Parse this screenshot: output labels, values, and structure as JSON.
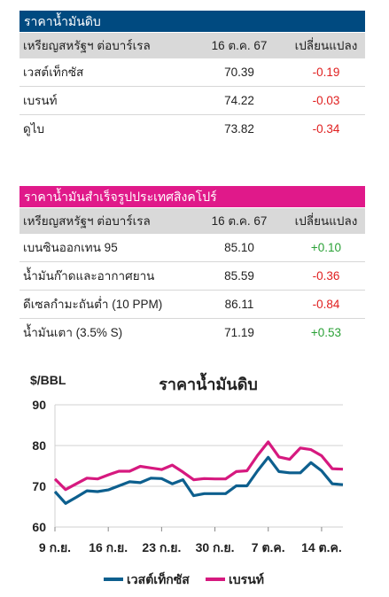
{
  "crude": {
    "header": "ราคาน้ำมันดิบ",
    "header_color": "#004a80",
    "col_unit": "เหรียญสหรัฐฯ ต่อบาร์เรล",
    "col_date": "16 ต.ค. 67",
    "col_change": "เปลี่ยนแปลง",
    "rows": [
      {
        "name": "เวสต์เท็กซัส",
        "price": "70.39",
        "change": "-0.19"
      },
      {
        "name": "เบรนท์",
        "price": "74.22",
        "change": "-0.03"
      },
      {
        "name": "ดูไบ",
        "price": "73.82",
        "change": "-0.34"
      }
    ]
  },
  "refined": {
    "header": "ราคาน้ำมันสำเร็จรูปประเทศสิงคโปร์",
    "header_color": "#e0198a",
    "col_unit": "เหรียญสหรัฐฯ ต่อบาร์เรล",
    "col_date": "16 ต.ค. 67",
    "col_change": "เปลี่ยนแปลง",
    "rows": [
      {
        "name": "เบนซินออกเทน 95",
        "price": "85.10",
        "change": "+0.10"
      },
      {
        "name": "น้ำมันก๊าดและอากาศยาน",
        "price": "85.59",
        "change": "-0.36"
      },
      {
        "name": "ดีเซลกำมะถันต่ำ (10 PPM)",
        "price": "86.11",
        "change": "-0.84"
      },
      {
        "name": "น้ำมันเตา (3.5% S)",
        "price": "71.19",
        "change": "+0.53"
      }
    ]
  },
  "chart_data": {
    "type": "line",
    "title": "ราคาน้ำมันดิบ",
    "ylabel": "$/BBL",
    "ylim": [
      60,
      90
    ],
    "yticks": [
      60,
      70,
      80,
      90
    ],
    "xticks": [
      "9 ก.ย.",
      "16 ก.ย.",
      "23 ก.ย.",
      "30 ก.ย.",
      "7 ต.ค.",
      "14 ต.ค."
    ],
    "x": [
      "9 ก.ย.",
      "10 ก.ย.",
      "11 ก.ย.",
      "12 ก.ย.",
      "13 ก.ย.",
      "16 ก.ย.",
      "17 ก.ย.",
      "18 ก.ย.",
      "19 ก.ย.",
      "20 ก.ย.",
      "23 ก.ย.",
      "24 ก.ย.",
      "25 ก.ย.",
      "26 ก.ย.",
      "27 ก.ย.",
      "30 ก.ย.",
      "1 ต.ค.",
      "2 ต.ค.",
      "3 ต.ค.",
      "4 ต.ค.",
      "7 ต.ค.",
      "8 ต.ค.",
      "9 ต.ค.",
      "10 ต.ค.",
      "11 ต.ค.",
      "14 ต.ค.",
      "15 ต.ค.",
      "16 ต.ค."
    ],
    "series": [
      {
        "name": "เวสต์เท็กซัส",
        "color": "#0d5f8e",
        "values": [
          68.7,
          65.8,
          67.3,
          68.9,
          68.7,
          69.1,
          70.1,
          71.1,
          70.9,
          72.0,
          71.9,
          70.6,
          71.6,
          67.7,
          68.2,
          68.2,
          68.2,
          70.1,
          70.1,
          73.8,
          77.1,
          73.6,
          73.3,
          73.3,
          75.8,
          73.8,
          70.6,
          70.4
        ]
      },
      {
        "name": "เบรนท์",
        "color": "#d6197f",
        "values": [
          71.8,
          69.2,
          70.6,
          72.0,
          71.8,
          72.8,
          73.7,
          73.7,
          74.9,
          74.5,
          74.1,
          75.2,
          73.5,
          71.6,
          71.9,
          71.8,
          71.8,
          73.6,
          73.8,
          77.6,
          80.9,
          77.2,
          76.6,
          79.4,
          79.0,
          77.5,
          74.3,
          74.2
        ]
      }
    ]
  }
}
